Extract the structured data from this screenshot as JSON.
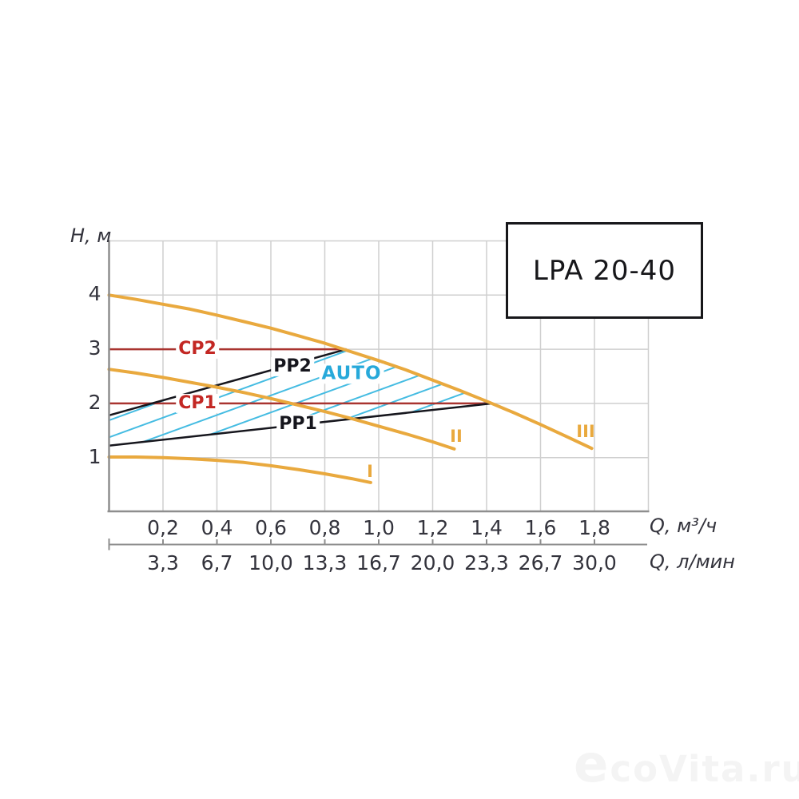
{
  "title_box": {
    "label": "LPA 20-40"
  },
  "watermark": {
    "first_letter": "e",
    "rest": "coVita.ru"
  },
  "chart_data": {
    "type": "line",
    "title": "LPA 20-40 circulation pump performance curves",
    "grid": true,
    "y_axis": {
      "title": "H, м",
      "range": [
        0,
        5
      ],
      "ticks": [
        1,
        2,
        3,
        4
      ],
      "tick_labels": [
        "1",
        "2",
        "3",
        "4"
      ]
    },
    "x_axis_primary": {
      "title": "Q, м³/ч",
      "range": [
        0,
        2.0
      ],
      "tick_values": [
        0.2,
        0.4,
        0.6,
        0.8,
        1.0,
        1.2,
        1.4,
        1.6,
        1.8
      ],
      "tick_labels": [
        "0,2",
        "0,4",
        "0,6",
        "0,8",
        "1,0",
        "1,2",
        "1,4",
        "1,6",
        "1,8"
      ]
    },
    "x_axis_secondary": {
      "title": "Q, л/мин",
      "tick_labels": [
        "3,3",
        "6,7",
        "10,0",
        "13,3",
        "16,7",
        "20,0",
        "23,3",
        "26,7",
        "30,0"
      ]
    },
    "pump_curves": [
      {
        "name": "I",
        "q": [
          0,
          0.1,
          0.2,
          0.3,
          0.4,
          0.5,
          0.6,
          0.7,
          0.8,
          0.9,
          0.97
        ],
        "h": [
          1.01,
          1.01,
          1.0,
          0.98,
          0.95,
          0.91,
          0.85,
          0.78,
          0.7,
          0.61,
          0.54
        ],
        "label_at": {
          "q": 0.965,
          "h": 0.73
        }
      },
      {
        "name": "II",
        "q": [
          0,
          0.1,
          0.2,
          0.3,
          0.4,
          0.5,
          0.6,
          0.7,
          0.8,
          0.9,
          1.0,
          1.1,
          1.2,
          1.28
        ],
        "h": [
          2.63,
          2.56,
          2.48,
          2.39,
          2.3,
          2.2,
          2.09,
          1.97,
          1.85,
          1.72,
          1.58,
          1.44,
          1.29,
          1.16
        ],
        "label_at": {
          "q": 1.29,
          "h": 1.38
        }
      },
      {
        "name": "III",
        "q": [
          0,
          0.1,
          0.2,
          0.3,
          0.4,
          0.5,
          0.6,
          0.7,
          0.8,
          0.9,
          1.0,
          1.1,
          1.2,
          1.3,
          1.4,
          1.5,
          1.6,
          1.7,
          1.79
        ],
        "h": [
          4.0,
          3.92,
          3.83,
          3.74,
          3.63,
          3.51,
          3.39,
          3.25,
          3.11,
          2.95,
          2.79,
          2.62,
          2.43,
          2.24,
          2.04,
          1.83,
          1.61,
          1.38,
          1.17
        ],
        "label_at": {
          "q": 1.77,
          "h": 1.48
        }
      }
    ],
    "constant_pressure_lines": [
      {
        "name": "CP1",
        "h": 2.0,
        "q_start": 0,
        "q_end": 1.42,
        "label_at": {
          "q": 0.33,
          "h": 2.0
        }
      },
      {
        "name": "CP2",
        "h": 3.0,
        "q_start": 0,
        "q_end": 0.88,
        "label_at": {
          "q": 0.33,
          "h": 3.0
        }
      }
    ],
    "proportional_pressure_lines": [
      {
        "name": "PP1",
        "from": {
          "q": 0,
          "h": 1.22
        },
        "to": {
          "q": 1.42,
          "h": 2.0
        },
        "label_at": {
          "q": 0.7,
          "h": 1.61
        }
      },
      {
        "name": "PP2",
        "from": {
          "q": 0,
          "h": 1.78
        },
        "to": {
          "q": 0.88,
          "h": 3.0
        },
        "label_at": {
          "q": 0.68,
          "h": 2.68
        }
      }
    ],
    "auto_region": {
      "label": "AUTO",
      "label_at": {
        "q": 0.9,
        "h": 2.55
      },
      "description": "hatched area bounded by PP1, PP2 and curve III"
    },
    "colors": {
      "pump_curve": "#E9A93E",
      "cp_line": "#A93430",
      "cp_text": "#C32723",
      "pp_line": "#16161D",
      "hatch": "#45BCE2",
      "auto_text": "#27A9DA",
      "grid": "#CFCFCF",
      "axis": "#8E8E8E",
      "tick_text": "#33333C"
    }
  }
}
